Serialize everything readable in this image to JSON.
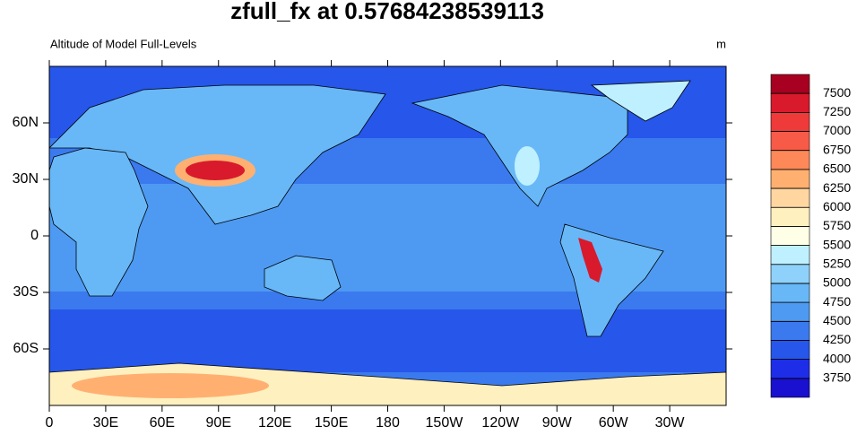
{
  "chart_data": {
    "type": "contour-map",
    "title": "zfull_fx at 0.57684238539113",
    "subtitle_left": "Altitude of Model Full-Levels",
    "subtitle_right": "m",
    "xlim": [
      0,
      360
    ],
    "xticks": [
      0,
      {
        "value": 30,
        "label": "30E"
      },
      {
        "value": 60,
        "label": "60E"
      },
      {
        "value": 90,
        "label": "90E"
      },
      {
        "value": 120,
        "label": "120E"
      },
      {
        "value": 150,
        "label": "150E"
      },
      180,
      {
        "value": 210,
        "label": "150W"
      },
      {
        "value": 240,
        "label": "120W"
      },
      {
        "value": 270,
        "label": "90W"
      },
      {
        "value": 300,
        "label": "60W"
      },
      {
        "value": 330,
        "label": "30W"
      }
    ],
    "ylim": [
      -90,
      90
    ],
    "yticks": [
      {
        "value": -60,
        "label": "60S"
      },
      {
        "value": -30,
        "label": "30S"
      },
      0,
      {
        "value": 30,
        "label": "30N"
      },
      {
        "value": 60,
        "label": "60N"
      }
    ],
    "colorbar": {
      "levels": [
        3750,
        4000,
        4250,
        4500,
        4750,
        5000,
        5250,
        5500,
        5750,
        6000,
        6250,
        6500,
        6750,
        7000,
        7250,
        7500
      ],
      "colors": [
        "#1a10d0",
        "#1e2ee8",
        "#2656ea",
        "#3a7aee",
        "#4e9af2",
        "#68b8f8",
        "#8ed2fc",
        "#bff0ff",
        "#fffee6",
        "#fff0c0",
        "#ffd6a0",
        "#ffb070",
        "#ff8858",
        "#f85a48",
        "#ef3a3a",
        "#d81a2c",
        "#a80020"
      ]
    }
  }
}
